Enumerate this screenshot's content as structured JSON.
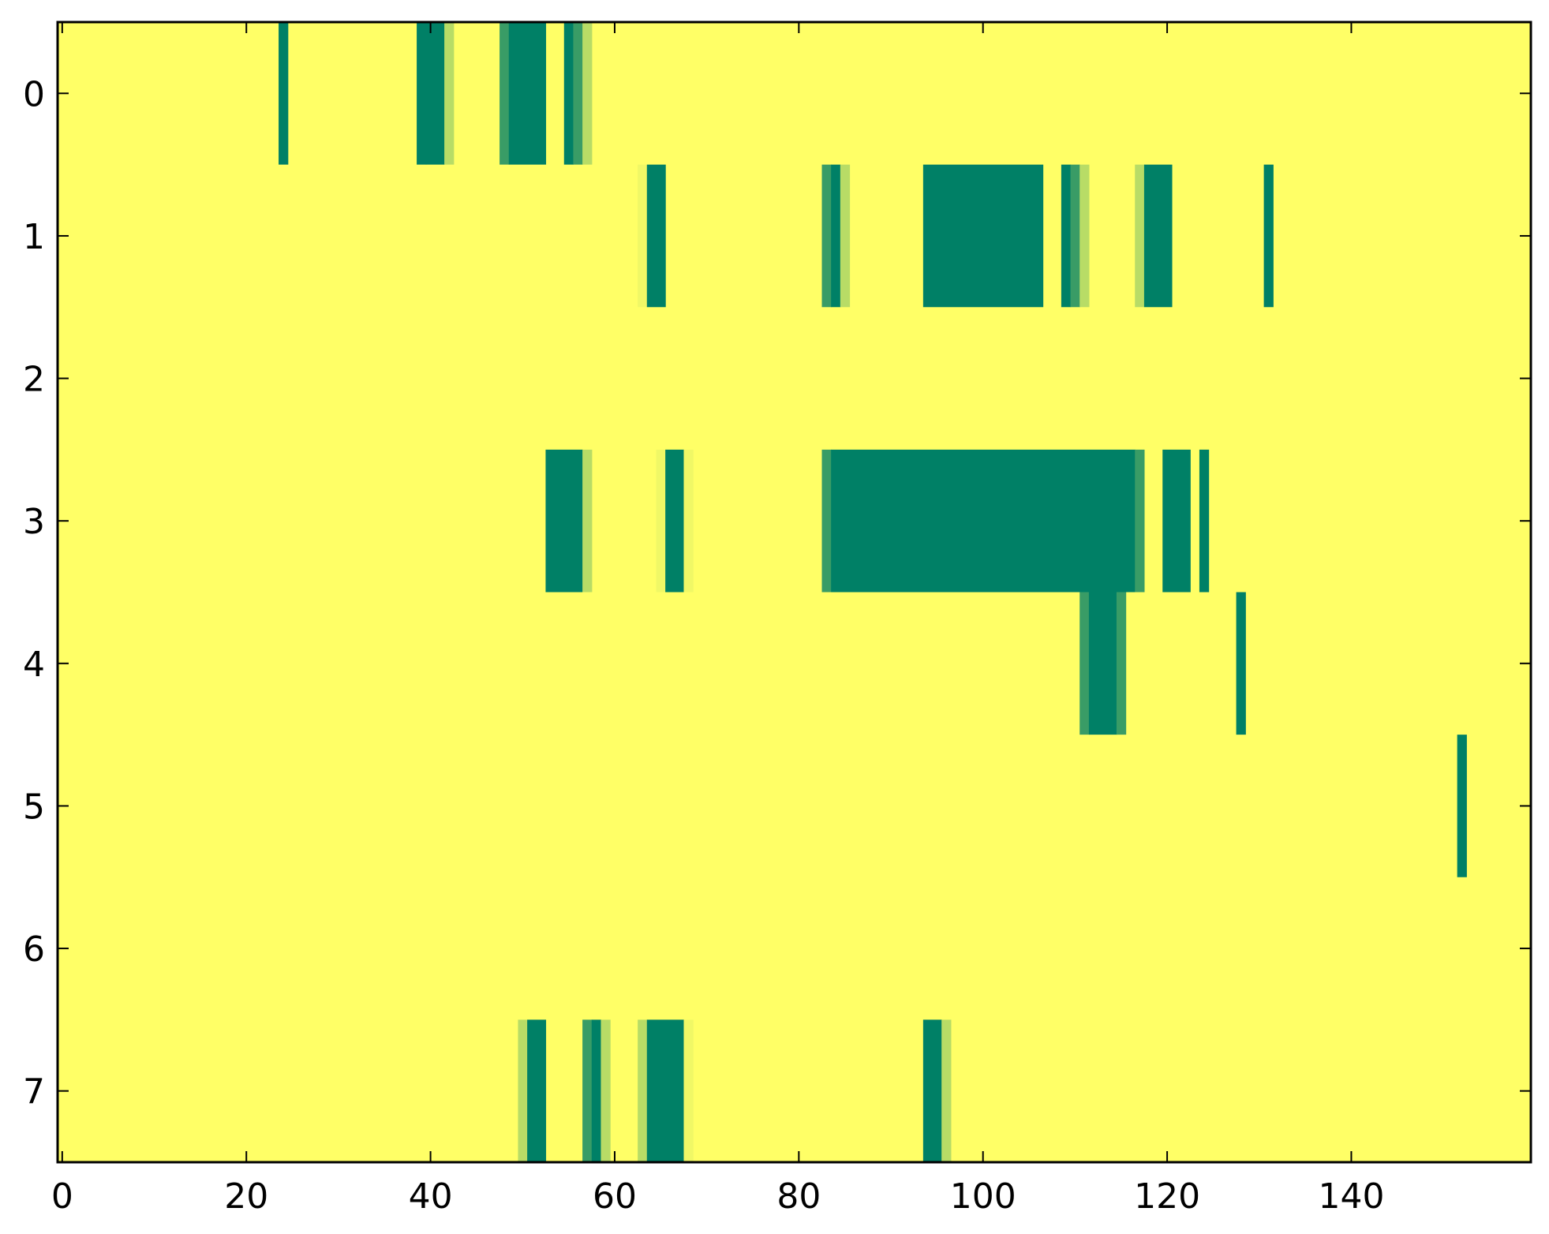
{
  "chart_data": {
    "type": "heatmap",
    "title": "",
    "xlabel": "",
    "ylabel": "",
    "xlim": [
      -0.5,
      159.5
    ],
    "ylim": [
      7.5,
      -0.5
    ],
    "x_ticks": [
      0,
      20,
      40,
      60,
      80,
      100,
      120,
      140
    ],
    "y_ticks": [
      0,
      1,
      2,
      3,
      4,
      5,
      6,
      7
    ],
    "x_tick_labels": [
      "0",
      "20",
      "40",
      "60",
      "80",
      "100",
      "120",
      "140"
    ],
    "y_tick_labels": [
      "0",
      "1",
      "2",
      "3",
      "4",
      "5",
      "6",
      "7"
    ],
    "grid": false,
    "colormap": "summer_r",
    "colors": {
      "background": "#ffff66",
      "high": "#008066",
      "mid": "#399c66",
      "low": "#b8dc66",
      "faint": "#f0f866"
    },
    "rows": [
      {
        "row": 0,
        "cells": [
          {
            "x": [
              24,
              24
            ],
            "value": 1.0
          },
          {
            "x": [
              39,
              39
            ],
            "value": 0.95
          },
          {
            "x": [
              40,
              41
            ],
            "value": 1.0
          },
          {
            "x": [
              42,
              42
            ],
            "value": 0.35
          },
          {
            "x": [
              48,
              48
            ],
            "value": 0.6
          },
          {
            "x": [
              49,
              52
            ],
            "value": 1.0
          },
          {
            "x": [
              55,
              55
            ],
            "value": 1.0
          },
          {
            "x": [
              56,
              56
            ],
            "value": 0.85
          },
          {
            "x": [
              57,
              57
            ],
            "value": 0.35
          }
        ]
      },
      {
        "row": 1,
        "cells": [
          {
            "x": [
              63,
              63
            ],
            "value": 0.1
          },
          {
            "x": [
              64,
              65
            ],
            "value": 1.0
          },
          {
            "x": [
              83,
              83
            ],
            "value": 0.75
          },
          {
            "x": [
              84,
              84
            ],
            "value": 1.0
          },
          {
            "x": [
              85,
              85
            ],
            "value": 0.35
          },
          {
            "x": [
              94,
              106
            ],
            "value": 1.0
          },
          {
            "x": [
              109,
              109
            ],
            "value": 1.0
          },
          {
            "x": [
              110,
              110
            ],
            "value": 0.85
          },
          {
            "x": [
              111,
              111
            ],
            "value": 0.35
          },
          {
            "x": [
              117,
              117
            ],
            "value": 0.35
          },
          {
            "x": [
              118,
              120
            ],
            "value": 1.0
          },
          {
            "x": [
              131,
              131
            ],
            "value": 1.0
          }
        ]
      },
      {
        "row": 2,
        "cells": []
      },
      {
        "row": 3,
        "cells": [
          {
            "x": [
              53,
              56
            ],
            "value": 1.0
          },
          {
            "x": [
              57,
              57
            ],
            "value": 0.35
          },
          {
            "x": [
              65,
              65
            ],
            "value": 0.1
          },
          {
            "x": [
              66,
              67
            ],
            "value": 1.0
          },
          {
            "x": [
              68,
              68
            ],
            "value": 0.1
          },
          {
            "x": [
              83,
              83
            ],
            "value": 0.75
          },
          {
            "x": [
              84,
              116
            ],
            "value": 1.0
          },
          {
            "x": [
              117,
              117
            ],
            "value": 0.75
          },
          {
            "x": [
              120,
              122
            ],
            "value": 1.0
          },
          {
            "x": [
              124,
              124
            ],
            "value": 1.0
          }
        ]
      },
      {
        "row": 4,
        "cells": [
          {
            "x": [
              111,
              111
            ],
            "value": 0.75
          },
          {
            "x": [
              112,
              114
            ],
            "value": 1.0
          },
          {
            "x": [
              115,
              115
            ],
            "value": 0.75
          },
          {
            "x": [
              128,
              128
            ],
            "value": 1.0
          }
        ]
      },
      {
        "row": 5,
        "cells": [
          {
            "x": [
              152,
              152
            ],
            "value": 1.0
          }
        ]
      },
      {
        "row": 6,
        "cells": []
      },
      {
        "row": 7,
        "cells": [
          {
            "x": [
              50,
              50
            ],
            "value": 0.35
          },
          {
            "x": [
              51,
              52
            ],
            "value": 1.0
          },
          {
            "x": [
              57,
              57
            ],
            "value": 0.75
          },
          {
            "x": [
              58,
              58
            ],
            "value": 1.0
          },
          {
            "x": [
              59,
              59
            ],
            "value": 0.35
          },
          {
            "x": [
              63,
              63
            ],
            "value": 0.35
          },
          {
            "x": [
              64,
              67
            ],
            "value": 1.0
          },
          {
            "x": [
              68,
              68
            ],
            "value": 0.1
          },
          {
            "x": [
              94,
              95
            ],
            "value": 1.0
          },
          {
            "x": [
              96,
              96
            ],
            "value": 0.35
          }
        ]
      }
    ]
  }
}
